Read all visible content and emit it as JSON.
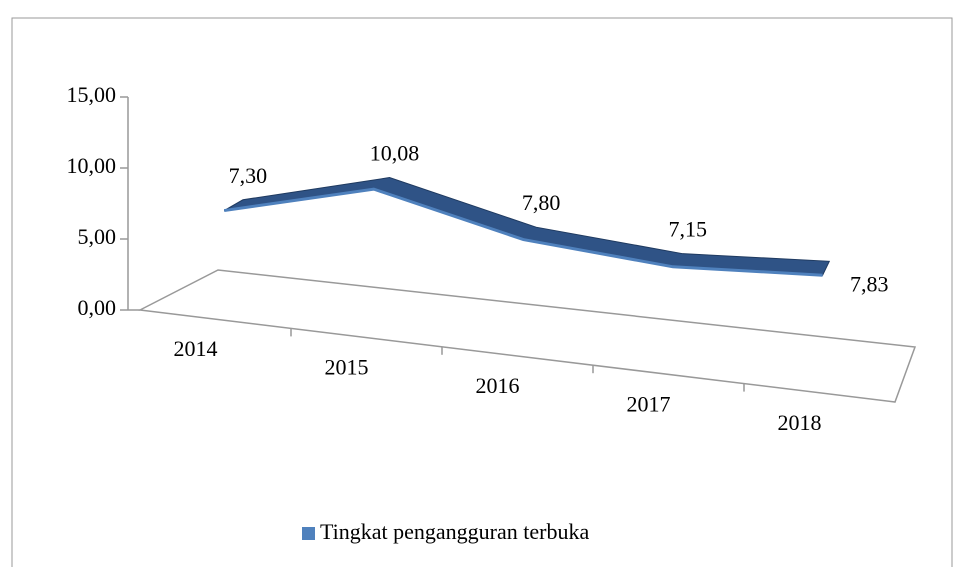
{
  "chart_data": {
    "type": "line3d",
    "categories": [
      "2014",
      "2015",
      "2016",
      "2017",
      "2018"
    ],
    "series": [
      {
        "name": "Tingkat pengangguran terbuka",
        "color": "#4f81bd",
        "values": [
          7.3,
          10.08,
          7.8,
          7.15,
          7.83
        ],
        "value_labels": [
          "7,30",
          "10,08",
          "7,80",
          "7,15",
          "7,83"
        ]
      }
    ],
    "ylim": [
      0,
      15
    ],
    "yticks": [
      {
        "value": 0,
        "label": "0,00"
      },
      {
        "value": 5,
        "label": "5,00"
      },
      {
        "value": 10,
        "label": "10,00"
      },
      {
        "value": 15,
        "label": "15,00"
      }
    ],
    "legend": "bottom"
  }
}
